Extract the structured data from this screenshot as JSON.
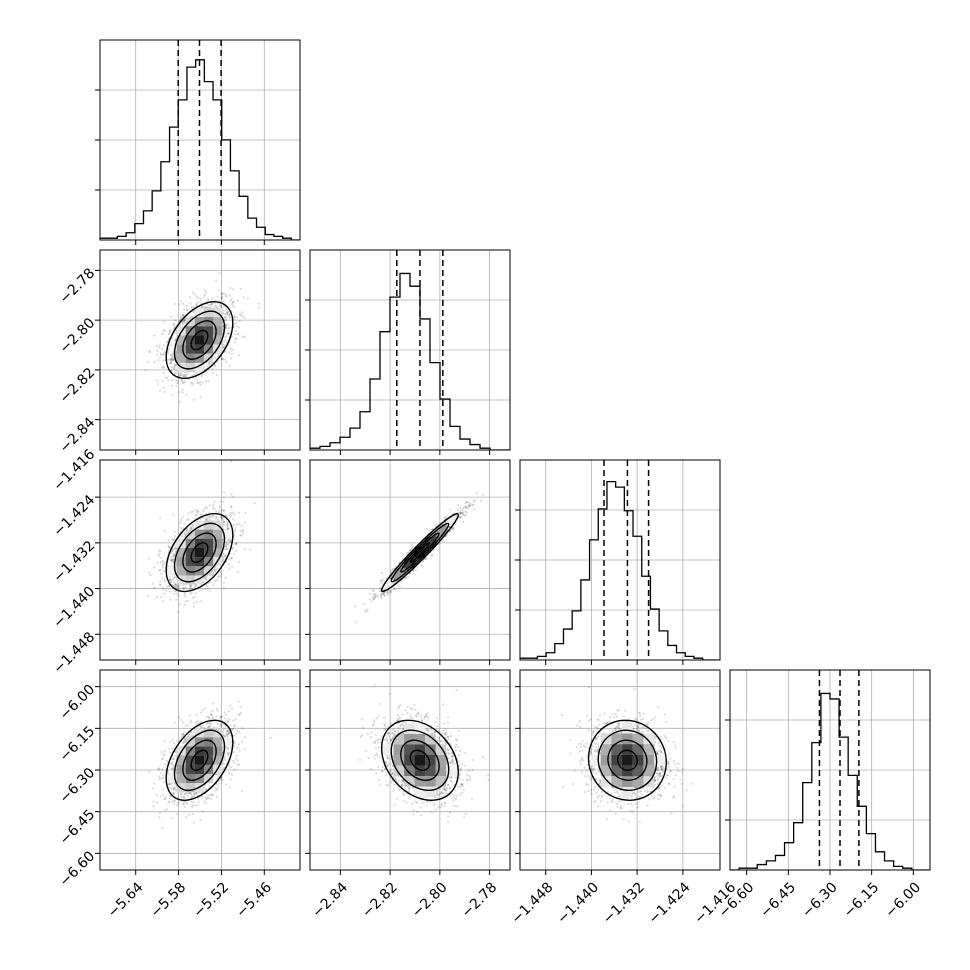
{
  "chart_data": {
    "type": "corner",
    "grid": true,
    "n_params": 4,
    "params": [
      {
        "range": [
          -5.69,
          -5.41
        ],
        "ticks": [
          -5.64,
          -5.58,
          -5.52,
          -5.46
        ],
        "tick_labels": [
          "−5.64",
          "−5.58",
          "−5.52",
          "−5.46"
        ],
        "quantiles": [
          -5.5805,
          -5.5507,
          -5.5205
        ],
        "mean": -5.5507,
        "sd": 0.0233
      },
      {
        "range": [
          -2.8522,
          -2.7718
        ],
        "ticks": [
          -2.84,
          -2.82,
          -2.8,
          -2.78
        ],
        "tick_labels": [
          "−2.84",
          "−2.82",
          "−2.80",
          "−2.78"
        ],
        "quantiles": [
          -2.8173,
          -2.808,
          -2.7988
        ],
        "mean": -2.808,
        "sd": 0.0077
      },
      {
        "range": [
          -1.4525,
          -1.4175
        ],
        "ticks": [
          -1.448,
          -1.44,
          -1.432,
          -1.424,
          -1.416
        ],
        "tick_labels": [
          "−1.448",
          "−1.440",
          "−1.432",
          "−1.424",
          "−1.416"
        ],
        "quantiles": [
          -1.4378,
          -1.4337,
          -1.43
        ],
        "mean": -1.4337,
        "sd": 0.0034
      },
      {
        "range": [
          -6.66,
          -5.94
        ],
        "ticks": [
          -6.6,
          -6.45,
          -6.3,
          -6.15,
          -6.0
        ],
        "tick_labels": [
          "−6.60",
          "−6.45",
          "−6.30",
          "−6.15",
          "−6.00"
        ],
        "quantiles": [
          -6.338,
          -6.264,
          -6.196
        ],
        "mean": -6.265,
        "sd": 0.072
      }
    ],
    "histograms": [
      [
        0.01,
        0.01,
        0.02,
        0.04,
        0.09,
        0.16,
        0.27,
        0.43,
        0.62,
        0.77,
        0.95,
        0.99,
        0.87,
        0.77,
        0.55,
        0.38,
        0.24,
        0.12,
        0.07,
        0.03,
        0.02,
        0.01,
        0.0
      ],
      [
        0.01,
        0.02,
        0.04,
        0.07,
        0.12,
        0.21,
        0.39,
        0.65,
        0.84,
        0.97,
        0.9,
        0.72,
        0.48,
        0.28,
        0.13,
        0.06,
        0.03,
        0.01,
        0.0,
        0.0
      ],
      [
        0.01,
        0.01,
        0.02,
        0.04,
        0.09,
        0.17,
        0.27,
        0.44,
        0.66,
        0.83,
        0.98,
        0.95,
        0.82,
        0.68,
        0.46,
        0.28,
        0.16,
        0.08,
        0.04,
        0.02,
        0.01,
        0.0,
        0.0
      ],
      [
        0.0,
        0.01,
        0.01,
        0.03,
        0.05,
        0.08,
        0.15,
        0.26,
        0.48,
        0.7,
        0.97,
        0.94,
        0.73,
        0.52,
        0.35,
        0.2,
        0.1,
        0.05,
        0.02,
        0.01,
        0.0,
        0.0
      ]
    ],
    "correlations": {
      "1-0": 0.45,
      "2-0": 0.45,
      "2-1": 0.97,
      "3-0": 0.45,
      "3-1": -0.3,
      "3-2": -0.05
    },
    "contour_levels_sigma": [
      0.5,
      1.0,
      1.5,
      2.0
    ]
  }
}
